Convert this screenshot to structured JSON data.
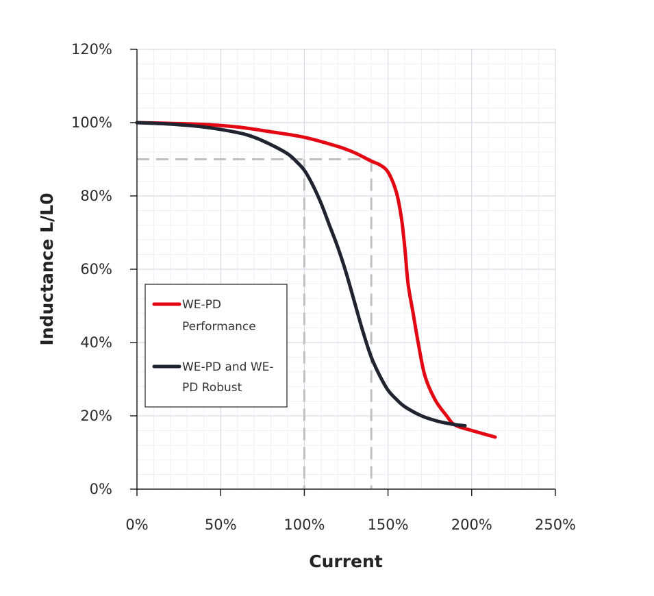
{
  "chart_data": {
    "type": "line",
    "title": "",
    "xlabel": "Current",
    "ylabel": "Inductance L/L0",
    "xlim": [
      0,
      250
    ],
    "ylim": [
      0,
      120
    ],
    "x_ticks": [
      0,
      50,
      100,
      150,
      200,
      250
    ],
    "x_tick_labels": [
      "0%",
      "50%",
      "100%",
      "150%",
      "200%",
      "250%"
    ],
    "y_ticks": [
      0,
      20,
      40,
      60,
      80,
      100,
      120
    ],
    "y_tick_labels": [
      "0%",
      "20%",
      "40%",
      "60%",
      "80%",
      "100%",
      "120%"
    ],
    "grid": true,
    "minor_grid": true,
    "legend_position": "left-middle",
    "series": [
      {
        "name": "WE-PD Performance",
        "legend_lines": [
          "WE-PD",
          "Performance"
        ],
        "color": "#e30613",
        "x": [
          0,
          20,
          40,
          60,
          80,
          100,
          120,
          130,
          140,
          145,
          150,
          155,
          158,
          160,
          162,
          165,
          168,
          172,
          178,
          185,
          190,
          200,
          214
        ],
        "y": [
          100,
          99.8,
          99.5,
          98.8,
          97.5,
          96,
          93.5,
          91.8,
          89.5,
          88.5,
          86.5,
          81,
          74,
          66,
          56,
          48,
          40,
          31,
          24.5,
          20,
          17.5,
          16,
          14.2
        ]
      },
      {
        "name": "WE-PD and WE-PD Robust",
        "legend_lines": [
          "WE-PD and WE-",
          "PD Robust"
        ],
        "color": "#1f2430",
        "x": [
          0,
          20,
          40,
          60,
          70,
          80,
          90,
          95,
          100,
          105,
          110,
          115,
          120,
          125,
          130,
          135,
          140,
          145,
          150,
          155,
          160,
          170,
          180,
          190,
          196
        ],
        "y": [
          100,
          99.6,
          98.8,
          97.3,
          96,
          94,
          91.5,
          89.5,
          87,
          83,
          78,
          72,
          66,
          59,
          51,
          43,
          36,
          31,
          27,
          24.5,
          22.5,
          20,
          18.5,
          17.6,
          17.3
        ]
      }
    ],
    "reference_lines": {
      "color": "#c0c0c0",
      "horizontal_y": 90,
      "horizontal_x_range": [
        0,
        140
      ],
      "vertical_x": [
        100,
        140
      ]
    }
  }
}
